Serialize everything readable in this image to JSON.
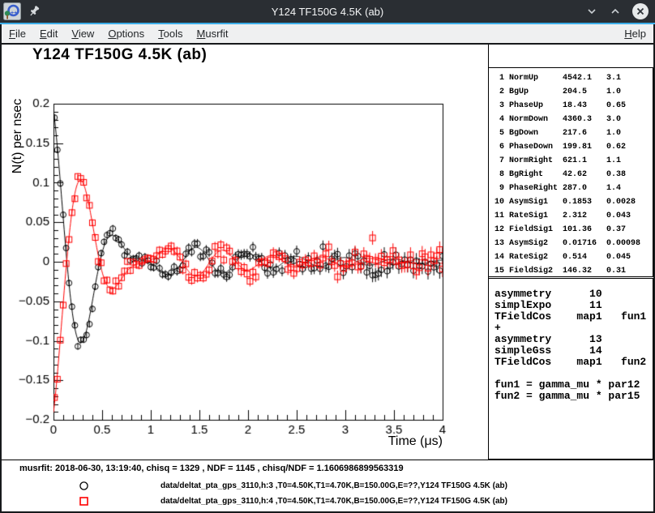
{
  "window": {
    "title": "Y124 TF150G 4.5K (ab)"
  },
  "titlebar": {
    "icons": [
      "root-app-icon",
      "pin-icon"
    ],
    "controls": [
      "minimize",
      "maximize",
      "close"
    ]
  },
  "menubar": {
    "items": [
      {
        "label": "File"
      },
      {
        "label": "Edit"
      },
      {
        "label": "View"
      },
      {
        "label": "Options"
      },
      {
        "label": "Tools"
      },
      {
        "label": "Musrfit"
      }
    ],
    "help_label": "Help"
  },
  "params": {
    "rows": [
      {
        "no": 1,
        "name": "NormUp",
        "value": "4542.1",
        "error": "3.1"
      },
      {
        "no": 2,
        "name": "BgUp",
        "value": "204.5",
        "error": "1.0"
      },
      {
        "no": 3,
        "name": "PhaseUp",
        "value": "18.43",
        "error": "0.65"
      },
      {
        "no": 4,
        "name": "NormDown",
        "value": "4360.3",
        "error": "3.0"
      },
      {
        "no": 5,
        "name": "BgDown",
        "value": "217.6",
        "error": "1.0"
      },
      {
        "no": 6,
        "name": "PhaseDown",
        "value": "199.81",
        "error": "0.62"
      },
      {
        "no": 7,
        "name": "NormRight",
        "value": "621.1",
        "error": "1.1"
      },
      {
        "no": 8,
        "name": "BgRight",
        "value": "42.62",
        "error": "0.38"
      },
      {
        "no": 9,
        "name": "PhaseRight",
        "value": "287.0",
        "error": "1.4"
      },
      {
        "no": 10,
        "name": "AsymSig1",
        "value": "0.1853",
        "error": "0.0028"
      },
      {
        "no": 11,
        "name": "RateSig1",
        "value": "2.312",
        "error": "0.043"
      },
      {
        "no": 12,
        "name": "FieldSig1",
        "value": "101.36",
        "error": "0.37"
      },
      {
        "no": 13,
        "name": "AsymSig2",
        "value": "0.01716",
        "error": "0.00098"
      },
      {
        "no": 14,
        "name": "RateSig2",
        "value": "0.514",
        "error": "0.045"
      },
      {
        "no": 15,
        "name": "FieldSig2",
        "value": "146.32",
        "error": "0.31"
      }
    ]
  },
  "theory": {
    "lines": [
      "asymmetry      10",
      "simplExpo      11",
      "TFieldCos    map1   fun1",
      "+",
      "asymmetry      13",
      "simpleGss      14",
      "TFieldCos    map1   fun2",
      "",
      "fun1 = gamma_mu * par12",
      "fun2 = gamma_mu * par15"
    ]
  },
  "footer": {
    "info": "musrfit: 2018-06-30, 13:19:40, chisq = 1329 , NDF = 1145 , chisq/NDF = 1.1606986899563319",
    "entries": [
      {
        "marker": "circle",
        "color": "#000000",
        "label": "data/deltat_pta_gps_3110,h:3 ,T0=4.50K,T1=4.70K,B=150.00G,E=??,Y124 TF150G 4.5K (ab)"
      },
      {
        "marker": "square",
        "color": "#ff0000",
        "label": "data/deltat_pta_gps_3110,h:4 ,T0=4.50K,T1=4.70K,B=150.00G,E=??,Y124 TF150G 4.5K (ab)"
      }
    ]
  },
  "chart_data": {
    "type": "scatter",
    "title": "Y124 TF150G 4.5K (ab)",
    "xlabel": "Time (μs)",
    "ylabel": "N(t) per nsec",
    "xlim": [
      0,
      4
    ],
    "ylim": [
      -0.2,
      0.2
    ],
    "grid": false,
    "x_ticks": {
      "major_step": 0.5,
      "minor_step": 0.1,
      "labels": [
        "0",
        "0.5",
        "1",
        "1.5",
        "2",
        "2.5",
        "3",
        "3.5",
        "4"
      ]
    },
    "y_ticks": {
      "major_step": 0.05,
      "minor_step": 0.01,
      "labels": [
        "−0.2",
        "−0.15",
        "−0.1",
        "−0.05",
        "0",
        "0.05",
        "0.1",
        "0.15",
        "0.2"
      ]
    },
    "series": [
      {
        "name": "data/deltat_pta_gps_3110,h:3 ,T0=4.50K,T1=4.70K,B=150.00G,E=??,Y124 TF150G 4.5K (ab)",
        "color": "#000000",
        "marker": "circle",
        "model": {
          "asym1": 0.1853,
          "rate1": 2.312,
          "freq1_MHz": 1.374,
          "asym2": 0.01716,
          "rate2_gss": 0.514,
          "freq2_MHz": 1.983,
          "phase_deg": 18.43
        },
        "noise_seed": 101
      },
      {
        "name": "data/deltat_pta_gps_3110,h:4 ,T0=4.50K,T1=4.70K,B=150.00G,E=??,Y124 TF150G 4.5K (ab)",
        "color": "#ff0000",
        "marker": "square",
        "model": {
          "asym1": 0.1853,
          "rate1": 2.312,
          "freq1_MHz": 1.374,
          "asym2": 0.01716,
          "rate2_gss": 0.514,
          "freq2_MHz": 1.983,
          "phase_deg": 199.81
        },
        "noise_seed": 202
      }
    ],
    "sampling": {
      "t_start": 0.01,
      "dt": 0.03,
      "t_end": 4.0,
      "noise_sigma0": 0.004,
      "noise_growth_tau": 4.2
    }
  }
}
